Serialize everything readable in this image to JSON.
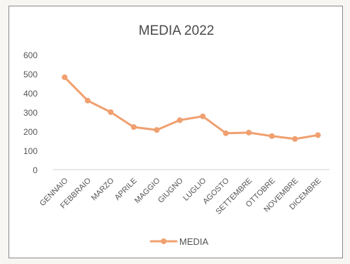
{
  "chart_data": {
    "type": "line",
    "title": "MEDIA 2022",
    "xlabel": "",
    "ylabel": "",
    "categories": [
      "GENNAIO",
      "FEBBRAIO",
      "MARZO",
      "APRILE",
      "MAGGIO",
      "GIUGNO",
      "LUGLIO",
      "AGOSTO",
      "SETTEMBRE",
      "OTTOBRE",
      "NOVEMBRE",
      "DICEMBRE"
    ],
    "series": [
      {
        "name": "MEDIA",
        "color": "#f0a070",
        "values": [
          482,
          360,
          300,
          222,
          207,
          258,
          278,
          190,
          193,
          175,
          160,
          180
        ]
      }
    ],
    "ylim": [
      0,
      600
    ],
    "yticks": [
      0,
      100,
      200,
      300,
      400,
      500,
      600
    ],
    "grid": false,
    "legend": "bottom"
  }
}
